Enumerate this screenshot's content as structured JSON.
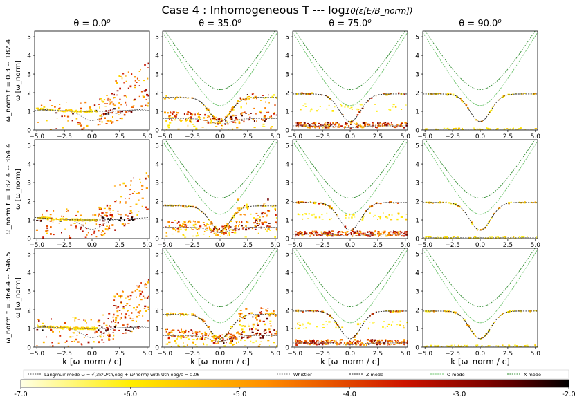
{
  "chart_data": {
    "type": "heatmap",
    "title": "Case 4 : Inhomogeneous T --- log",
    "title_math": "10(ε[E/B_norm])",
    "columns": [
      {
        "label": "θ = 0.0",
        "sup": "o"
      },
      {
        "label": "θ = 35.0",
        "sup": "o"
      },
      {
        "label": "θ = 75.0",
        "sup": "o"
      },
      {
        "label": "θ = 90.0",
        "sup": "o"
      }
    ],
    "rows": [
      {
        "label": "ω_norm t = 0.3 -- 182.4"
      },
      {
        "label": "ω_norm t = 182.4 -- 364.4"
      },
      {
        "label": "ω_norm t = 364.4 -- 546.5"
      }
    ],
    "xlabel": "k [ω_norm / c]",
    "ylabel": "ω [ω_norm]",
    "xlim": [
      -5.2,
      5.2
    ],
    "ylim": [
      0,
      5.3
    ],
    "xticks": [
      -5.0,
      -2.5,
      0.0,
      2.5,
      5.0
    ],
    "yticks": [
      0,
      1,
      2,
      3,
      4,
      5
    ],
    "xtick_labels": [
      "−5.0",
      "−2.5",
      "0.0",
      "2.5",
      "5.0"
    ],
    "ytick_labels": [
      "0",
      "1",
      "2",
      "3",
      "4",
      "5"
    ],
    "legend": [
      {
        "name": "Langmuir mode ω = √(3k²U²th,ebg + ω²norm) with Uth,ebg/c = 0.06",
        "color": "#444444"
      },
      {
        "name": "Whistler",
        "color": "#777777"
      },
      {
        "name": "Z mode",
        "color": "#222222"
      },
      {
        "name": "O mode",
        "color": "#6cc46c"
      },
      {
        "name": "X mode",
        "color": "#2e8b2e"
      }
    ],
    "colorbar": {
      "min": -7.0,
      "max": -2.0,
      "ticks": [
        -7.0,
        -6.0,
        -5.0,
        -4.0,
        -3.0,
        -2.0
      ],
      "tick_labels": [
        "-7.0",
        "-6.0",
        "-5.0",
        "-4.0",
        "-3.0",
        "-2.0"
      ],
      "colormap": "hot_r"
    }
  }
}
